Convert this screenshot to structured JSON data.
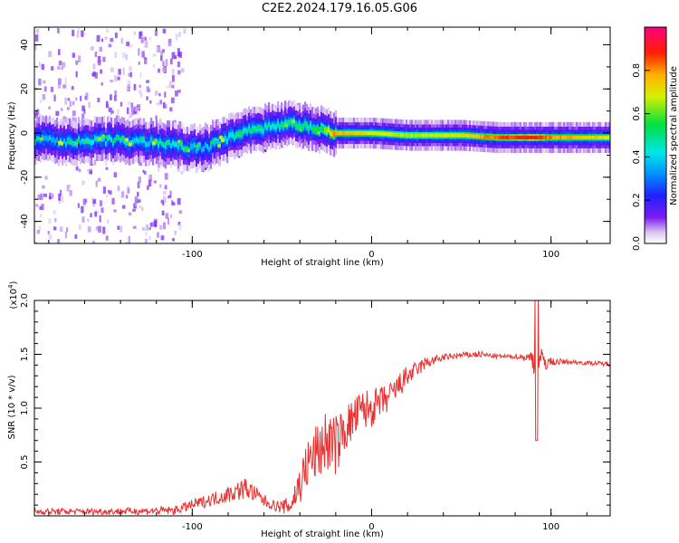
{
  "title": "C2E2.2024.179.16.05.G06",
  "colors": {
    "snr_line": "#e8312f",
    "axis": "#000000"
  },
  "chart_data": [
    {
      "type": "heatmap",
      "xlabel": "Height of straight line (km)",
      "ylabel": "Frequency (Hz)",
      "xlim": [
        -188,
        133
      ],
      "ylim": [
        -50,
        48
      ],
      "xticks": [
        -100,
        0,
        100
      ],
      "xtick_labels": [
        "-100",
        "0",
        "100"
      ],
      "yticks": [
        -40,
        -20,
        0,
        20,
        40
      ],
      "ytick_labels": [
        "-40",
        "-20",
        "0",
        "20",
        "40"
      ],
      "colorbar": {
        "label": "Normalized spectral amplitude",
        "range": [
          0,
          1
        ],
        "ticks": [
          0,
          0.2,
          0.4,
          0.6,
          0.8
        ],
        "tick_labels": [
          "0.0",
          "0.2",
          "0.4",
          "0.6",
          "0.8"
        ],
        "colormap": "rainbow (white-violet-blue-cyan-green-yellow-red-magenta)"
      },
      "ridge": {
        "x": [
          -188,
          -160,
          -140,
          -120,
          -105,
          -95,
          -85,
          -75,
          -65,
          -55,
          -45,
          -35,
          -28,
          -22,
          -15,
          0,
          20,
          50,
          70,
          90,
          100,
          120,
          133
        ],
        "center": [
          -3,
          -4,
          -3,
          -4,
          -6,
          -7,
          -4,
          -1,
          2,
          3,
          4,
          3,
          2,
          0,
          0,
          0,
          -1,
          -1,
          -2,
          -2,
          -2,
          -2,
          -2
        ],
        "amplitude": [
          0.35,
          0.4,
          0.4,
          0.4,
          0.4,
          0.35,
          0.4,
          0.45,
          0.45,
          0.45,
          0.5,
          0.5,
          0.55,
          0.8,
          0.75,
          0.7,
          0.65,
          0.7,
          0.85,
          0.9,
          0.8,
          0.75,
          0.7
        ],
        "noise_band_x": [
          -188,
          -115
        ]
      }
    },
    {
      "type": "line",
      "xlabel": "Height of straight line (km)",
      "ylabel": "SNR (10 * v/v)",
      "y_multiplier": "(x10^4)",
      "y_multiplier_base": "(x10",
      "y_multiplier_exp": "4",
      "y_multiplier_close": ")",
      "xlim": [
        -188,
        133
      ],
      "ylim": [
        0,
        2.0
      ],
      "xticks": [
        -100,
        0,
        100
      ],
      "xtick_labels": [
        "-100",
        "0",
        "100"
      ],
      "yticks": [
        0.5,
        1.0,
        1.5,
        2.0
      ],
      "ytick_labels": [
        "0.5",
        "1.0",
        "1.5",
        "2.0"
      ],
      "series": [
        {
          "name": "SNR",
          "x": [
            -188,
            -150,
            -110,
            -100,
            -90,
            -80,
            -70,
            -60,
            -55,
            -50,
            -45,
            -40,
            -35,
            -30,
            -25,
            -20,
            -15,
            -10,
            -5,
            0,
            5,
            10,
            15,
            20,
            25,
            30,
            40,
            50,
            60,
            70,
            80,
            88,
            92,
            95,
            100,
            110,
            120,
            133
          ],
          "values": [
            0.04,
            0.04,
            0.05,
            0.1,
            0.15,
            0.2,
            0.26,
            0.14,
            0.1,
            0.08,
            0.1,
            0.3,
            0.5,
            0.6,
            0.7,
            0.65,
            0.8,
            0.9,
            0.98,
            1.0,
            1.05,
            1.1,
            1.2,
            1.3,
            1.35,
            1.42,
            1.47,
            1.49,
            1.5,
            1.48,
            1.48,
            1.47,
            1.45,
            1.43,
            1.43,
            1.43,
            1.42,
            1.41
          ],
          "noise": [
            0.03,
            0.03,
            0.04,
            0.05,
            0.06,
            0.08,
            0.1,
            0.06,
            0.05,
            0.06,
            0.1,
            0.2,
            0.25,
            0.28,
            0.3,
            0.28,
            0.22,
            0.2,
            0.2,
            0.18,
            0.15,
            0.14,
            0.12,
            0.1,
            0.08,
            0.06,
            0.03,
            0.03,
            0.03,
            0.02,
            0.02,
            0.05,
            0.2,
            0.12,
            0.04,
            0.02,
            0.02,
            0.02
          ]
        }
      ],
      "annotations": [
        {
          "x": 92,
          "peak": 2.0,
          "trough": 0.7
        }
      ]
    }
  ]
}
